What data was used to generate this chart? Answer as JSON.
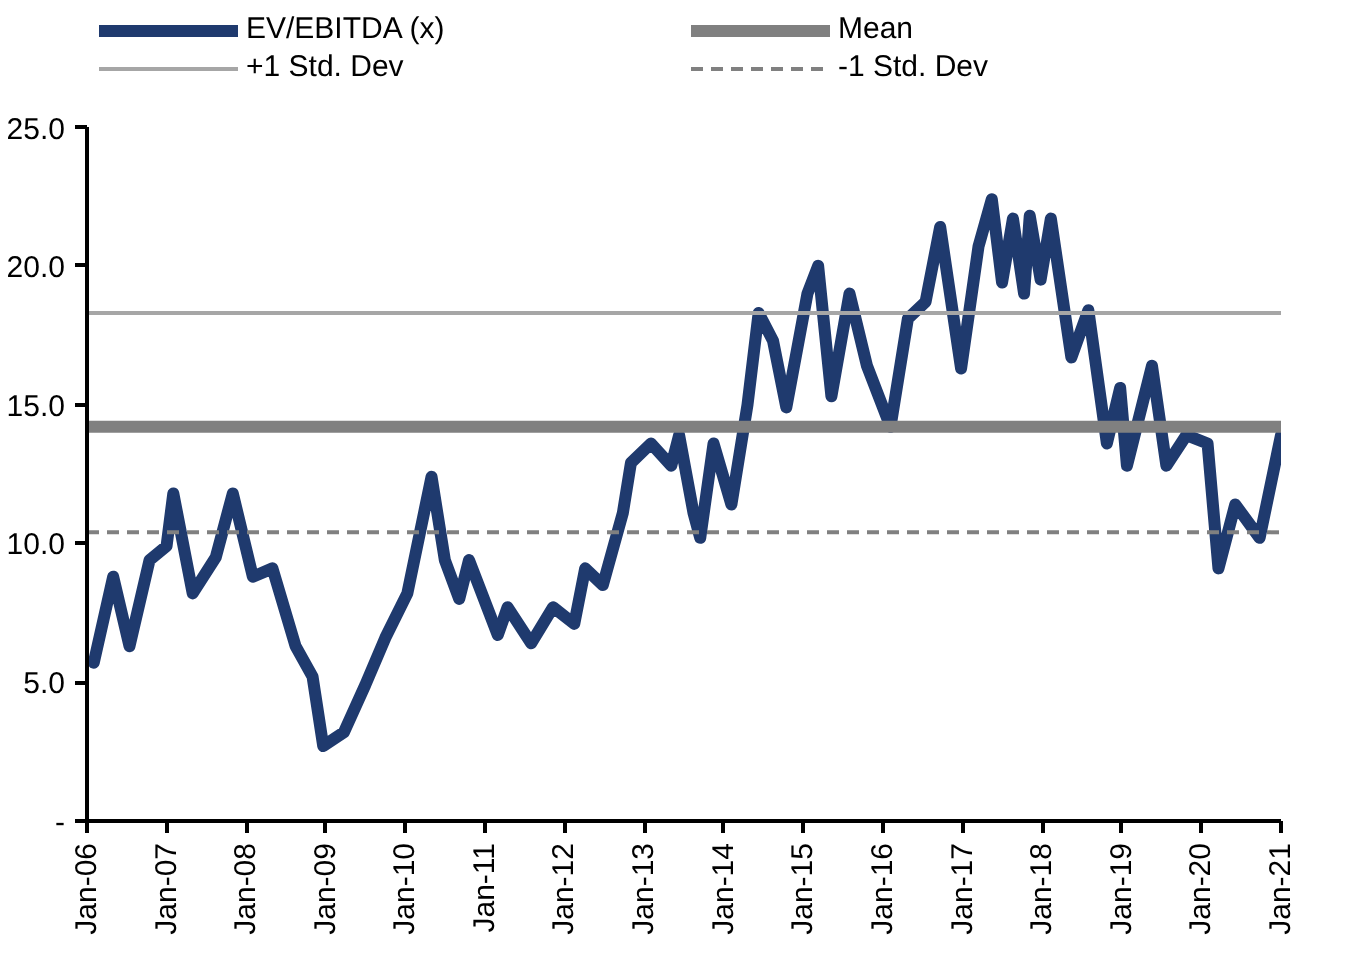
{
  "chart_data": {
    "type": "line",
    "x": [
      "2006-02-01",
      "2006-05-01",
      "2006-07-15",
      "2006-10-15",
      "2007-01-01",
      "2007-02-01",
      "2007-05-01",
      "2007-08-15",
      "2007-11-01",
      "2008-02-01",
      "2008-05-01",
      "2008-08-15",
      "2008-11-01",
      "2008-12-20",
      "2009-03-25",
      "2009-07-01",
      "2009-10-01",
      "2010-01-10",
      "2010-05-01",
      "2010-07-01",
      "2010-09-05",
      "2010-10-20",
      "2011-03-01",
      "2011-04-15",
      "2011-08-01",
      "2011-11-10",
      "2012-02-15",
      "2012-04-05",
      "2012-06-25",
      "2012-09-25",
      "2012-11-01",
      "2013-02-01",
      "2013-05-05",
      "2013-06-10",
      "2013-08-15",
      "2013-09-15",
      "2013-11-15",
      "2014-02-05",
      "2014-04-20",
      "2014-06-10",
      "2014-08-15",
      "2014-10-15",
      "2015-01-20",
      "2015-03-10",
      "2015-05-10",
      "2015-08-01",
      "2015-10-20",
      "2016-02-05",
      "2016-04-25",
      "2016-07-15",
      "2016-09-20",
      "2016-12-25",
      "2017-03-15",
      "2017-05-15",
      "2017-07-01",
      "2017-08-20",
      "2017-10-10",
      "2017-11-05",
      "2017-12-25",
      "2018-02-10",
      "2018-05-15",
      "2018-08-01",
      "2018-10-25",
      "2018-12-25",
      "2019-01-25",
      "2019-05-20",
      "2019-07-25",
      "2019-10-25",
      "2020-01-30",
      "2020-03-20",
      "2020-06-05",
      "2020-09-25",
      "2021-01-01"
    ],
    "series": [
      {
        "name": "EV/EBITDA (x)",
        "color": "#1f3a6e",
        "values": [
          5.7,
          8.8,
          6.3,
          9.4,
          9.9,
          11.8,
          8.2,
          9.5,
          11.8,
          8.8,
          9.1,
          6.3,
          5.2,
          2.7,
          3.2,
          4.9,
          6.6,
          8.2,
          12.4,
          9.4,
          8.0,
          9.4,
          6.7,
          7.7,
          6.4,
          7.7,
          7.1,
          9.1,
          8.5,
          11.1,
          12.9,
          13.6,
          12.8,
          13.9,
          11.1,
          10.2,
          13.6,
          11.4,
          15.0,
          18.3,
          17.3,
          14.9,
          19.0,
          20.0,
          15.3,
          19.0,
          16.4,
          14.2,
          18.1,
          18.7,
          21.4,
          16.3,
          20.7,
          22.4,
          19.4,
          21.7,
          19.0,
          21.8,
          19.5,
          21.7,
          16.7,
          18.4,
          13.6,
          15.6,
          12.8,
          16.4,
          12.8,
          13.9,
          13.6,
          9.1,
          11.4,
          10.2,
          13.9
        ]
      }
    ],
    "ref_lines": [
      {
        "axis": "y",
        "value": 14.2,
        "label": "Mean",
        "color": "#808080",
        "line_style": "solid"
      },
      {
        "axis": "y",
        "value": 18.3,
        "label": "+1 Std. Dev",
        "color": "#a6a6a6",
        "line_style": "solid"
      },
      {
        "axis": "y",
        "value": 10.4,
        "label": "-1 Std. Dev",
        "color": "#808080",
        "line_style": "dashed"
      }
    ],
    "xlim": [
      "2006-01-01",
      "2021-01-01"
    ],
    "xticks": [
      {
        "value": "2006-01-01",
        "label": "Jan-06"
      },
      {
        "value": "2007-01-01",
        "label": "Jan-07"
      },
      {
        "value": "2008-01-01",
        "label": "Jan-08"
      },
      {
        "value": "2009-01-01",
        "label": "Jan-09"
      },
      {
        "value": "2010-01-01",
        "label": "Jan-10"
      },
      {
        "value": "2011-01-01",
        "label": "Jan-11"
      },
      {
        "value": "2012-01-01",
        "label": "Jan-12"
      },
      {
        "value": "2013-01-01",
        "label": "Jan-13"
      },
      {
        "value": "2014-01-01",
        "label": "Jan-14"
      },
      {
        "value": "2015-01-01",
        "label": "Jan-15"
      },
      {
        "value": "2016-01-01",
        "label": "Jan-16"
      },
      {
        "value": "2017-01-01",
        "label": "Jan-17"
      },
      {
        "value": "2018-01-01",
        "label": "Jan-18"
      },
      {
        "value": "2019-01-01",
        "label": "Jan-19"
      },
      {
        "value": "2020-01-01",
        "label": "Jan-20"
      },
      {
        "value": "2021-01-01",
        "label": "Jan-21"
      }
    ],
    "ylim": [
      0,
      25
    ],
    "yticks": [
      {
        "value": 0,
        "label": "-"
      },
      {
        "value": 5,
        "label": "5.0"
      },
      {
        "value": 10,
        "label": "10.0"
      },
      {
        "value": 15,
        "label": "15.0"
      },
      {
        "value": 20,
        "label": "20.0"
      },
      {
        "value": 25,
        "label": "25.0"
      }
    ],
    "grid": false,
    "legend": "top",
    "line_style": "solid",
    "marker": "none"
  }
}
